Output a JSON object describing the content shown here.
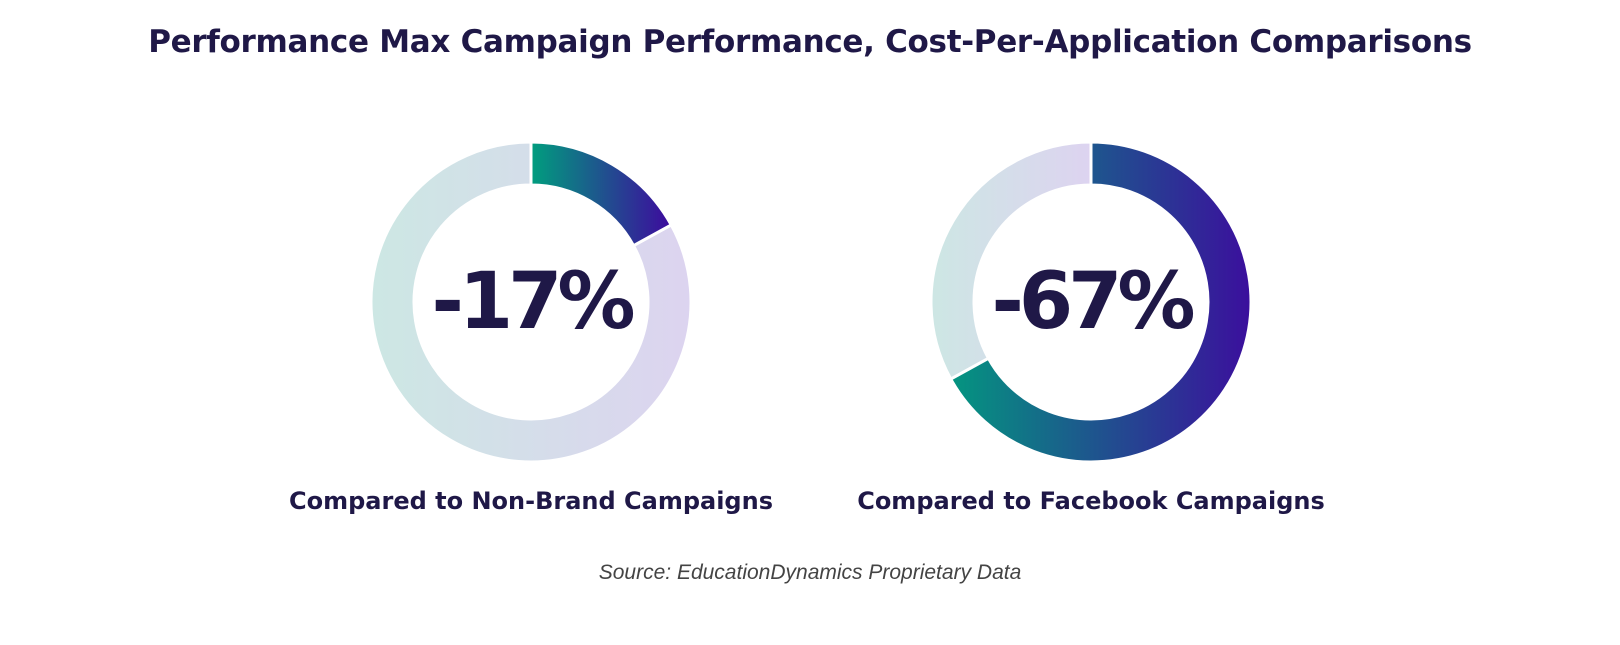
{
  "title": "Performance Max Campaign Performance, Cost-Per-Application Comparisons",
  "source": "Source: EducationDynamics Proprietary Data",
  "colors": {
    "text": "#1f1847",
    "highlight_start": "#009e7e",
    "highlight_end": "#3d0a9e",
    "track_start": "#cce8e3",
    "track_end": "#ddd3f0"
  },
  "chart_data": [
    {
      "type": "pie",
      "variant": "donut",
      "label": "-17%",
      "caption": "Compared to Non-Brand Campaigns",
      "highlight_value": 17,
      "remainder_value": 83
    },
    {
      "type": "pie",
      "variant": "donut",
      "label": "-67%",
      "caption": "Compared to Facebook Campaigns",
      "highlight_value": 67,
      "remainder_value": 33
    }
  ]
}
